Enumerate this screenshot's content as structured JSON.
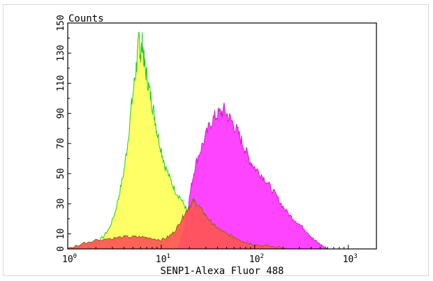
{
  "chart_data": {
    "type": "area",
    "title": "",
    "xlabel": "SENP1-Alexa Fluor 488",
    "ylabel": "Counts",
    "x_scale": "log",
    "xlim": [
      1,
      2000
    ],
    "ylim": [
      0,
      150
    ],
    "grid": false,
    "legend": "none",
    "x_ticks": [
      {
        "value": 1,
        "base": "10",
        "exp": "0"
      },
      {
        "value": 10,
        "base": "10",
        "exp": "1"
      },
      {
        "value": 100,
        "base": "10",
        "exp": "2"
      },
      {
        "value": 1000,
        "base": "10",
        "exp": "3"
      }
    ],
    "y_ticks": [
      0,
      10,
      30,
      50,
      70,
      90,
      110,
      130,
      150
    ],
    "series": [
      {
        "fill": "#ffff66",
        "stroke": "#22cc22",
        "points": [
          [
            1.0,
            0
          ],
          [
            1.3,
            1
          ],
          [
            1.6,
            2
          ],
          [
            2.0,
            4
          ],
          [
            2.4,
            8
          ],
          [
            2.8,
            14
          ],
          [
            3.2,
            24
          ],
          [
            3.6,
            38
          ],
          [
            4.0,
            52
          ],
          [
            4.4,
            72
          ],
          [
            4.8,
            95
          ],
          [
            5.2,
            112
          ],
          [
            5.5,
            125
          ],
          [
            5.8,
            140
          ],
          [
            6.0,
            128
          ],
          [
            6.3,
            138
          ],
          [
            6.6,
            122
          ],
          [
            7.0,
            115
          ],
          [
            7.5,
            105
          ],
          [
            8.0,
            96
          ],
          [
            8.5,
            88
          ],
          [
            9.0,
            78
          ],
          [
            10.0,
            66
          ],
          [
            11.0,
            55
          ],
          [
            12.5,
            46
          ],
          [
            14.0,
            39
          ],
          [
            16.0,
            34
          ],
          [
            18.0,
            28
          ],
          [
            20.0,
            22
          ],
          [
            23.0,
            16
          ],
          [
            26.0,
            12
          ],
          [
            30.0,
            9
          ],
          [
            35.0,
            7
          ],
          [
            40.0,
            5
          ],
          [
            50.0,
            3
          ],
          [
            60.0,
            1
          ],
          [
            80.0,
            0
          ]
        ]
      },
      {
        "fill": "#ff44ff",
        "stroke": "#cc22cc",
        "points": [
          [
            15.0,
            0
          ],
          [
            17.0,
            10
          ],
          [
            19.0,
            25
          ],
          [
            21.0,
            42
          ],
          [
            23.0,
            55
          ],
          [
            26.0,
            65
          ],
          [
            30.0,
            75
          ],
          [
            34.0,
            84
          ],
          [
            38.0,
            88
          ],
          [
            42.0,
            90
          ],
          [
            47.0,
            92
          ],
          [
            52.0,
            88
          ],
          [
            58.0,
            84
          ],
          [
            65.0,
            78
          ],
          [
            72.0,
            72
          ],
          [
            80.0,
            65
          ],
          [
            90.0,
            58
          ],
          [
            100.0,
            54
          ],
          [
            115.0,
            50
          ],
          [
            130.0,
            46
          ],
          [
            150.0,
            40
          ],
          [
            175.0,
            34
          ],
          [
            200.0,
            28
          ],
          [
            240.0,
            22
          ],
          [
            280.0,
            18
          ],
          [
            330.0,
            14
          ],
          [
            380.0,
            10
          ],
          [
            430.0,
            6
          ],
          [
            500.0,
            3
          ],
          [
            560.0,
            1
          ],
          [
            620.0,
            0
          ]
        ]
      },
      {
        "fill": "#ff5555",
        "stroke": "#886622",
        "points": [
          [
            1.0,
            0
          ],
          [
            1.5,
            4
          ],
          [
            2.0,
            6
          ],
          [
            3.0,
            7
          ],
          [
            4.0,
            8
          ],
          [
            5.0,
            8
          ],
          [
            6.0,
            8
          ],
          [
            8.0,
            7
          ],
          [
            10.0,
            6
          ],
          [
            12.0,
            8
          ],
          [
            14.0,
            12
          ],
          [
            16.0,
            18
          ],
          [
            18.0,
            24
          ],
          [
            20.0,
            28
          ],
          [
            22.0,
            32
          ],
          [
            24.0,
            30
          ],
          [
            27.0,
            26
          ],
          [
            30.0,
            22
          ],
          [
            34.0,
            18
          ],
          [
            38.0,
            15
          ],
          [
            44.0,
            12
          ],
          [
            50.0,
            10
          ],
          [
            60.0,
            8
          ],
          [
            70.0,
            6
          ],
          [
            85.0,
            4
          ],
          [
            100.0,
            3
          ],
          [
            130.0,
            2
          ],
          [
            180.0,
            1
          ],
          [
            250.0,
            0
          ]
        ]
      }
    ]
  }
}
